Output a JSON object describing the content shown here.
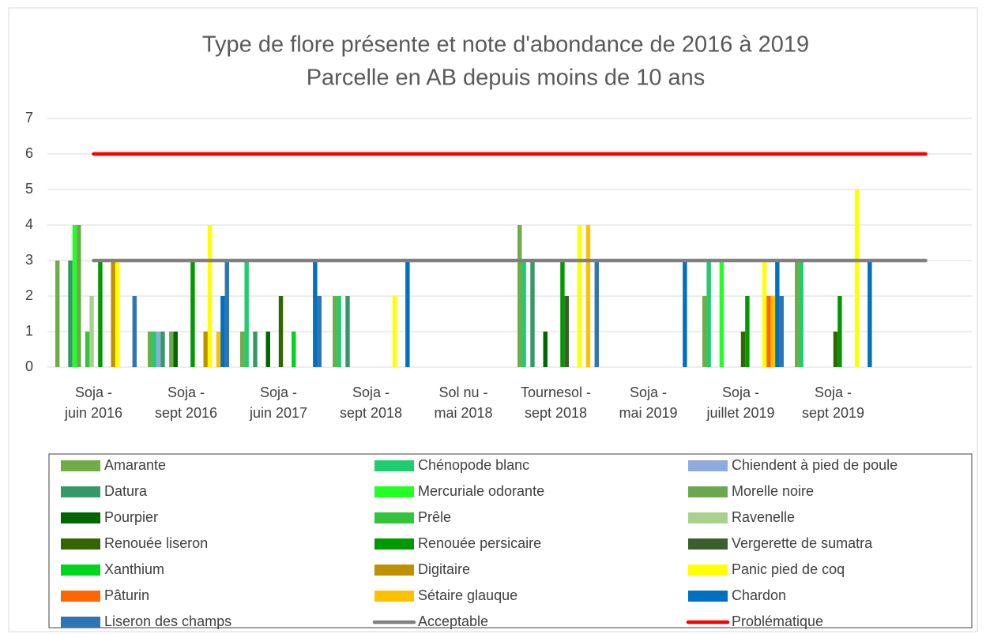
{
  "chart_data": {
    "type": "bar",
    "title": "Type de flore présente et note d'abondance de 2016 à 2019",
    "subtitle": "Parcelle en AB depuis moins de 10 ans",
    "categories": [
      "Soja - juin 2016",
      "Soja - sept 2016",
      "Soja - juin 2017",
      "Soja - sept 2018",
      "Sol nu - mai 2018",
      "Tournesol - sept 2018",
      "Soja - mai 2019",
      "Soja - juillet 2019",
      "Soja - sept 2019",
      null
    ],
    "ylim": [
      0,
      7
    ],
    "yticks": [
      0,
      1,
      2,
      3,
      4,
      5,
      6,
      7
    ],
    "grid": true,
    "series": [
      {
        "name": "Amarante",
        "color": "#70ad47",
        "values": [
          3,
          1,
          1,
          2,
          null,
          4,
          null,
          2,
          3,
          null
        ]
      },
      {
        "name": "Chénopode blanc",
        "color": "#1fcc6e",
        "values": [
          null,
          1,
          3,
          2,
          null,
          3,
          null,
          3,
          3,
          null
        ]
      },
      {
        "name": "Chiendent à pied de poule",
        "color": "#8faadc",
        "values": [
          null,
          1,
          null,
          null,
          null,
          null,
          null,
          null,
          null,
          null
        ]
      },
      {
        "name": "Datura",
        "color": "#339966",
        "values": [
          3,
          1,
          1,
          2,
          null,
          3,
          null,
          null,
          null,
          null
        ]
      },
      {
        "name": "Mercuriale odorante",
        "color": "#22ff22",
        "values": [
          4,
          null,
          null,
          null,
          null,
          null,
          null,
          3,
          null,
          null
        ]
      },
      {
        "name": "Morelle noire",
        "color": "#6aa84f",
        "values": [
          4,
          1,
          null,
          null,
          null,
          null,
          null,
          null,
          null,
          null
        ]
      },
      {
        "name": "Pourpier",
        "color": "#006600",
        "values": [
          null,
          1,
          1,
          null,
          null,
          1,
          null,
          null,
          null,
          null
        ]
      },
      {
        "name": "Prêle",
        "color": "#33c43c",
        "values": [
          1,
          null,
          null,
          null,
          null,
          null,
          null,
          null,
          null,
          null
        ]
      },
      {
        "name": "Ravenelle",
        "color": "#a9d18e",
        "values": [
          2,
          null,
          null,
          null,
          null,
          null,
          null,
          null,
          null,
          null
        ]
      },
      {
        "name": "Renouée liseron",
        "color": "#336600",
        "values": [
          null,
          null,
          2,
          null,
          null,
          null,
          null,
          1,
          1,
          null
        ]
      },
      {
        "name": "Renouée persicaire",
        "color": "#009900",
        "values": [
          3,
          3,
          null,
          null,
          null,
          3,
          null,
          2,
          2,
          null
        ]
      },
      {
        "name": "Vergerette de sumatra",
        "color": "#3b5e2b",
        "values": [
          null,
          null,
          null,
          null,
          null,
          2,
          null,
          null,
          null,
          null
        ]
      },
      {
        "name": "Xanthium",
        "color": "#00d41c",
        "values": [
          null,
          null,
          1,
          null,
          null,
          null,
          null,
          null,
          null,
          null
        ]
      },
      {
        "name": "Digitaire",
        "color": "#bf9000",
        "values": [
          3,
          1,
          null,
          null,
          null,
          null,
          null,
          null,
          null,
          null
        ]
      },
      {
        "name": "Panic pied de coq",
        "color": "#ffff00",
        "values": [
          3,
          4,
          null,
          2,
          null,
          4,
          null,
          3,
          5,
          null
        ]
      },
      {
        "name": "Pâturin",
        "color": "#ff6600",
        "values": [
          null,
          null,
          null,
          null,
          null,
          null,
          null,
          2,
          null,
          null
        ]
      },
      {
        "name": "Sétaire glauque",
        "color": "#ffc000",
        "values": [
          null,
          1,
          null,
          null,
          null,
          4,
          null,
          2,
          null,
          null
        ]
      },
      {
        "name": "Chardon",
        "color": "#0070c0",
        "values": [
          null,
          2,
          3,
          3,
          null,
          null,
          3,
          3,
          3,
          null
        ]
      },
      {
        "name": "Liseron des champs",
        "color": "#2e75b6",
        "values": [
          2,
          3,
          2,
          null,
          null,
          3,
          null,
          2,
          null,
          null
        ]
      },
      {
        "name": "Acceptable",
        "type": "line",
        "color": "#808080",
        "values": [
          3,
          3,
          3,
          3,
          3,
          3,
          3,
          3,
          3,
          3
        ]
      },
      {
        "name": "Problématique",
        "type": "line",
        "color": "#ff0000",
        "values": [
          6,
          6,
          6,
          6,
          6,
          6,
          6,
          6,
          6,
          6
        ]
      }
    ]
  }
}
